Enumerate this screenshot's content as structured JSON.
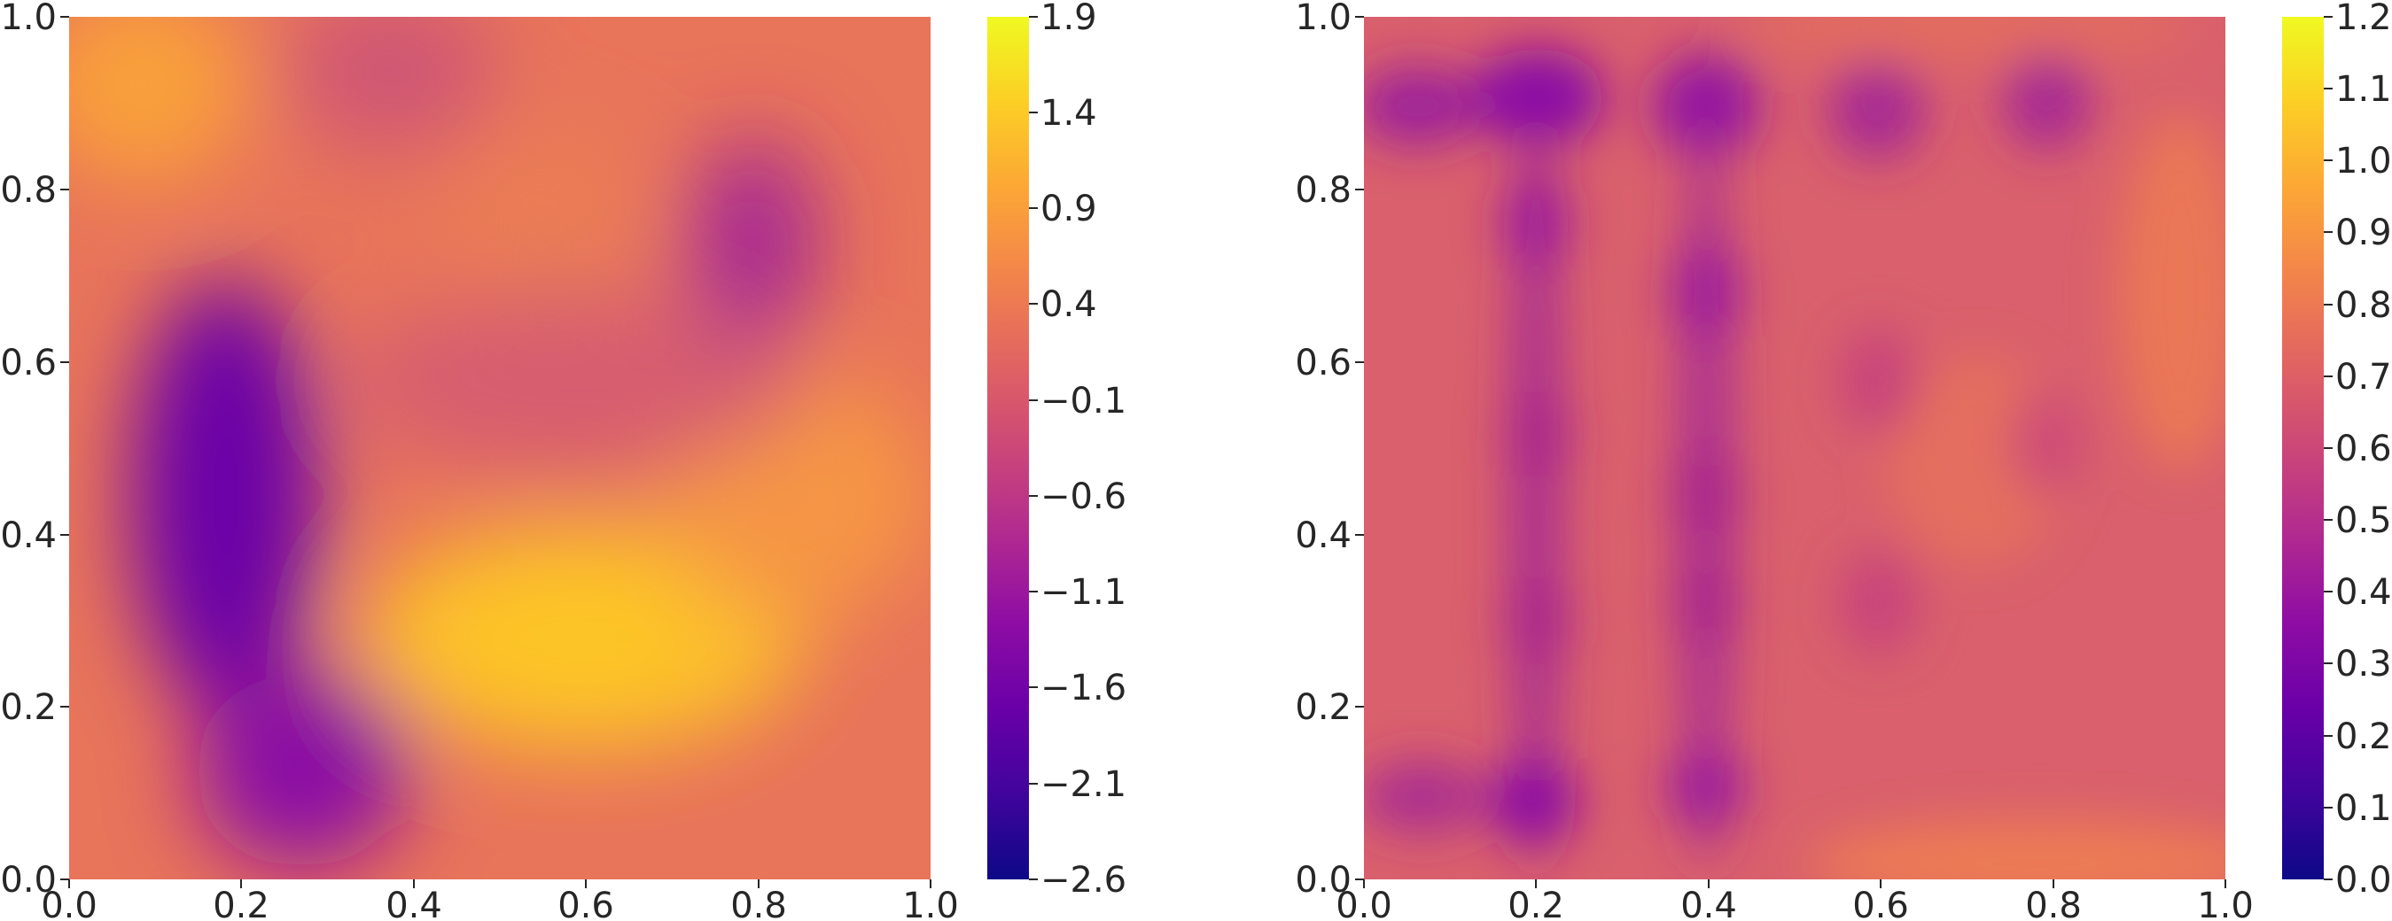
{
  "chart_data": [
    {
      "type": "heatmap",
      "colormap": "plasma",
      "xlim": [
        0.0,
        1.0
      ],
      "ylim": [
        0.0,
        1.0
      ],
      "xticks": [
        "0.0",
        "0.2",
        "0.4",
        "0.6",
        "0.8",
        "1.0"
      ],
      "yticks": [
        "0.0",
        "0.2",
        "0.4",
        "0.6",
        "0.8",
        "1.0"
      ],
      "colorbar": {
        "range": [
          -2.6,
          1.9
        ],
        "ticks": [
          "1.9",
          "1.4",
          "0.9",
          "0.4",
          "−0.1",
          "−0.6",
          "−1.1",
          "−1.6",
          "−2.1",
          "−2.6"
        ]
      },
      "field_features": [
        {
          "x": 0.6,
          "y": 0.28,
          "value": 1.5
        },
        {
          "x": 0.08,
          "y": 0.92,
          "value": 1.0
        },
        {
          "x": 0.55,
          "y": 0.75,
          "value": 0.6
        },
        {
          "x": 0.2,
          "y": 0.45,
          "value": -1.7
        },
        {
          "x": 0.22,
          "y": 0.15,
          "value": -1.1
        },
        {
          "x": 0.8,
          "y": 0.75,
          "value": -1.0
        }
      ]
    },
    {
      "type": "heatmap",
      "colormap": "plasma",
      "xlim": [
        0.0,
        1.0
      ],
      "ylim": [
        0.0,
        1.0
      ],
      "xticks": [
        "0.0",
        "0.2",
        "0.4",
        "0.6",
        "0.8",
        "1.0"
      ],
      "yticks": [
        "0.0",
        "0.2",
        "0.4",
        "0.6",
        "0.8",
        "1.0"
      ],
      "colorbar": {
        "range": [
          0.0,
          1.2
        ],
        "ticks": [
          "1.2",
          "1.1",
          "1.0",
          "0.9",
          "0.8",
          "0.7",
          "0.6",
          "0.5",
          "0.4",
          "0.3",
          "0.2",
          "0.1",
          "0.0"
        ]
      },
      "field_features": [
        {
          "x": 0.2,
          "y": 0.9,
          "value": 0.35
        },
        {
          "x": 0.4,
          "y": 0.9,
          "value": 0.38
        },
        {
          "x": 0.6,
          "y": 0.9,
          "value": 0.45
        },
        {
          "x": 0.8,
          "y": 0.9,
          "value": 0.45
        },
        {
          "x": 0.2,
          "y": 0.1,
          "value": 0.4
        },
        {
          "x": 0.4,
          "y": 0.12,
          "value": 0.45
        },
        {
          "x": 0.2,
          "y": 0.7,
          "value": 0.45
        },
        {
          "x": 0.4,
          "y": 0.7,
          "value": 0.45
        },
        {
          "x": 0.2,
          "y": 0.5,
          "value": 0.48
        },
        {
          "x": 0.4,
          "y": 0.5,
          "value": 0.5
        },
        {
          "x": 0.2,
          "y": 0.3,
          "value": 0.48
        },
        {
          "x": 0.4,
          "y": 0.32,
          "value": 0.5
        },
        {
          "x": 0.95,
          "y": 0.7,
          "value": 0.8
        },
        {
          "x": 0.9,
          "y": 0.05,
          "value": 0.85
        }
      ]
    }
  ]
}
